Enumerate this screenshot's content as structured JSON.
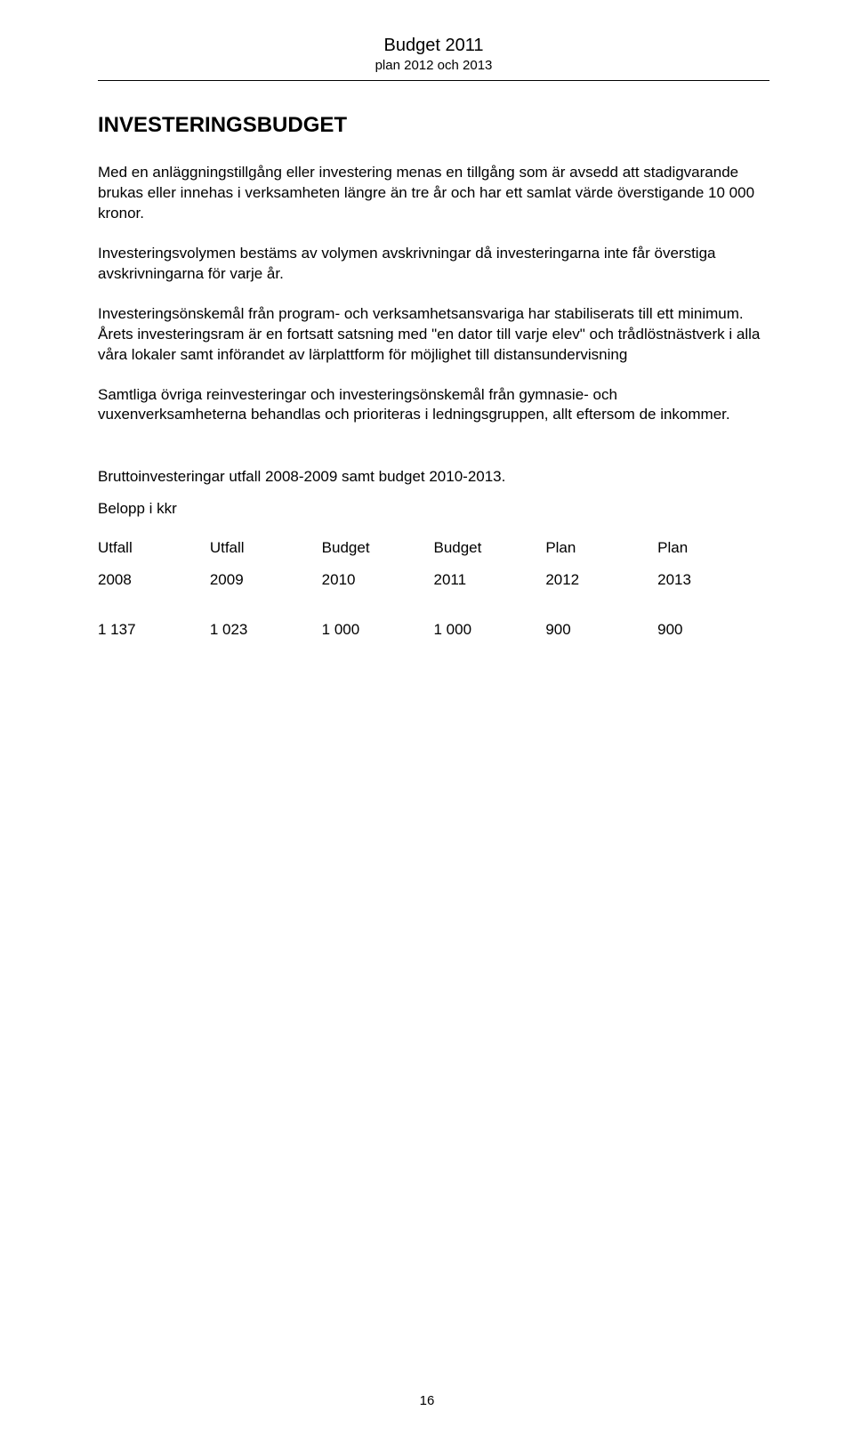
{
  "header": {
    "title": "Budget 2011",
    "subtitle": "plan 2012 och 2013"
  },
  "heading": "INVESTERINGSBUDGET",
  "paragraphs": {
    "p1": "Med en anläggningstillgång eller investering menas en tillgång som är avsedd att stadigvarande brukas eller innehas i verksamheten längre än tre år och har ett samlat värde överstigande 10 000 kronor.",
    "p2": "Investeringsvolymen bestäms av volymen avskrivningar då investeringarna inte får överstiga avskrivningarna för varje år.",
    "p3": "Investeringsönskemål från program- och verksamhetsansvariga har stabiliserats till ett minimum. Årets investeringsram är en fortsatt satsning med \"en dator till varje elev\" och trådlöstnästverk i alla våra lokaler samt införandet av lärplattform för möjlighet till distansundervisning",
    "p4": "Samtliga övriga reinvesteringar och investeringsönskemål från gymnasie- och vuxenverksamheterna behandlas och prioriteras i ledningsgruppen, allt eftersom de inkommer."
  },
  "tableIntro": "Bruttoinvesteringar utfall 2008-2009 samt budget 2010-2013.",
  "amountLabel": "Belopp i kkr",
  "table": {
    "row1": [
      "Utfall",
      "Utfall",
      "Budget",
      "Budget",
      "Plan",
      "Plan"
    ],
    "row2": [
      "2008",
      "2009",
      "2010",
      "2011",
      "2012",
      "2013"
    ],
    "row3": [
      "1 137",
      "1 023",
      "1 000",
      "1 000",
      "900",
      "900"
    ]
  },
  "pageNumber": "16"
}
